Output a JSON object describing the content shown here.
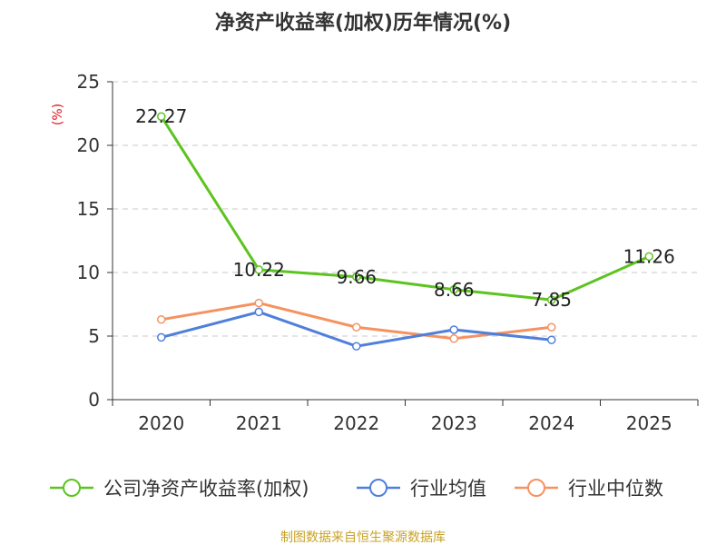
{
  "chart_data": {
    "type": "line",
    "title": "净资产收益率(加权)历年情况(%)",
    "ylabel": "(%)",
    "xlabel": "",
    "categories": [
      "2020",
      "2021",
      "2022",
      "2023",
      "2024",
      "2025"
    ],
    "ylim": [
      0,
      25
    ],
    "yticks": [
      0,
      5,
      10,
      15,
      20,
      25
    ],
    "grid": true,
    "legend_position": "bottom",
    "series": [
      {
        "name": "公司净资产收益率(加权)",
        "color": "#5cc41f",
        "values": [
          22.27,
          10.22,
          9.66,
          8.66,
          7.85,
          11.26
        ],
        "data_labels": [
          "22.27",
          "10.22",
          "9.66",
          "8.66",
          "7.85",
          "11.26"
        ]
      },
      {
        "name": "行业均值",
        "color": "#4f7fdb",
        "values": [
          4.9,
          6.9,
          4.2,
          5.5,
          4.7,
          null
        ]
      },
      {
        "name": "行业中位数",
        "color": "#f59260",
        "values": [
          6.3,
          7.6,
          5.7,
          4.8,
          5.7,
          null
        ]
      }
    ],
    "source": "制图数据来自恒生聚源数据库"
  }
}
